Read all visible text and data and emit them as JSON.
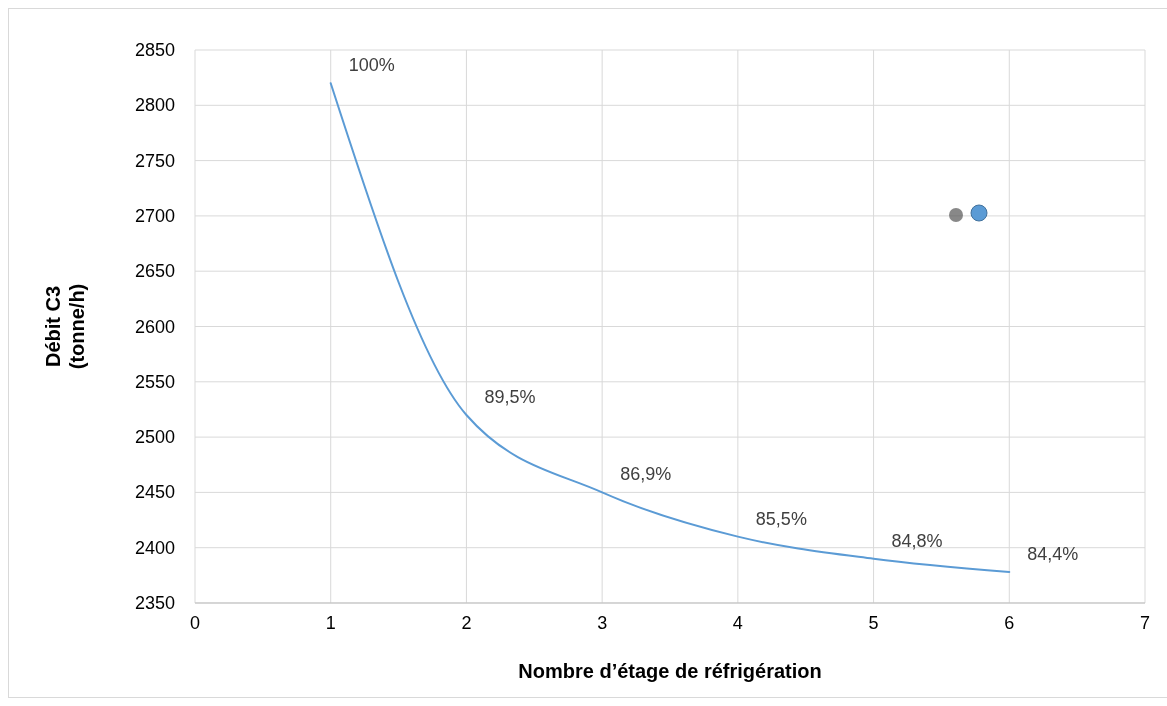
{
  "chart_data": {
    "type": "line",
    "xlabel": "Nombre d’étage de réfrigération",
    "ylabel": "Débit C3 (tonne/h)",
    "x": [
      1,
      2,
      3,
      4,
      5,
      6
    ],
    "series": [
      {
        "color": "#5b9bd5",
        "values": [
          2820,
          2520,
          2450,
          2410,
          2390,
          2378
        ]
      }
    ],
    "annotations": [
      {
        "text": "100%",
        "x": 1,
        "y": 2820
      },
      {
        "text": "89,5%",
        "x": 2,
        "y": 2520
      },
      {
        "text": "86,9%",
        "x": 3,
        "y": 2450
      },
      {
        "text": "85,5%",
        "x": 4,
        "y": 2410
      },
      {
        "text": "84,8%",
        "x": 5,
        "y": 2390
      },
      {
        "text": "84,4%",
        "x": 6,
        "y": 2378
      }
    ],
    "xlim": [
      0,
      7
    ],
    "xticks": [
      0,
      1,
      2,
      3,
      4,
      5,
      6,
      7
    ],
    "ylim": [
      2350,
      2850
    ],
    "yticks": [
      2350,
      2400,
      2450,
      2500,
      2550,
      2600,
      2650,
      2700,
      2750,
      2800,
      2850
    ],
    "grid": true,
    "marker": "none",
    "line_style": "solid"
  }
}
